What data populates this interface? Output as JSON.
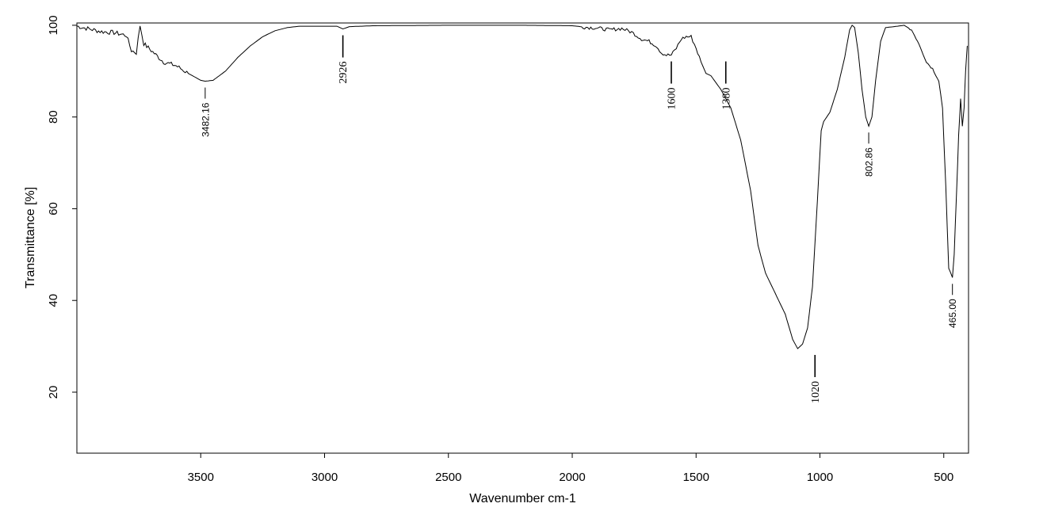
{
  "chart_data": {
    "type": "line",
    "title": "",
    "xlabel": "Wavenumber cm-1",
    "ylabel": "Transmittance [%]",
    "xlim": [
      4000,
      400
    ],
    "ylim": [
      6.7,
      100.5
    ],
    "x_ticks": [
      3500,
      3000,
      2500,
      2000,
      1500,
      1000,
      500
    ],
    "y_ticks": [
      20,
      40,
      60,
      80,
      100
    ],
    "x_tick_labels": [
      "3500",
      "3000",
      "2500",
      "2000",
      "1500",
      "1000",
      "500"
    ],
    "y_tick_labels": [
      "20",
      "40",
      "60",
      "80",
      "100"
    ],
    "grid": false,
    "legend": "none",
    "line_color": "#000000",
    "series": [
      {
        "values": [
          [
            4000,
            99.8
          ],
          [
            3950,
            99.2
          ],
          [
            3900,
            98.6
          ],
          [
            3850,
            98.4
          ],
          [
            3800,
            97.8
          ],
          [
            3780,
            94.5
          ],
          [
            3760,
            94.0
          ],
          [
            3745,
            100.0
          ],
          [
            3730,
            96.0
          ],
          [
            3700,
            94.5
          ],
          [
            3650,
            92.0
          ],
          [
            3600,
            91.2
          ],
          [
            3550,
            89.5
          ],
          [
            3500,
            88.0
          ],
          [
            3482,
            87.8
          ],
          [
            3450,
            88.0
          ],
          [
            3400,
            90.0
          ],
          [
            3350,
            93.0
          ],
          [
            3300,
            95.5
          ],
          [
            3250,
            97.5
          ],
          [
            3200,
            98.8
          ],
          [
            3150,
            99.5
          ],
          [
            3100,
            99.8
          ],
          [
            3000,
            99.8
          ],
          [
            2950,
            99.8
          ],
          [
            2926,
            99.2
          ],
          [
            2900,
            99.7
          ],
          [
            2800,
            99.9
          ],
          [
            2500,
            100.0
          ],
          [
            2200,
            100.0
          ],
          [
            2000,
            99.9
          ],
          [
            1950,
            99.6
          ],
          [
            1900,
            99.4
          ],
          [
            1850,
            99.0
          ],
          [
            1800,
            99.3
          ],
          [
            1760,
            98.5
          ],
          [
            1720,
            97.0
          ],
          [
            1690,
            96.5
          ],
          [
            1660,
            95.5
          ],
          [
            1640,
            94.0
          ],
          [
            1620,
            93.5
          ],
          [
            1600,
            93.5
          ],
          [
            1580,
            95.0
          ],
          [
            1560,
            97.0
          ],
          [
            1540,
            97.5
          ],
          [
            1520,
            97.5
          ],
          [
            1500,
            95.0
          ],
          [
            1480,
            92.0
          ],
          [
            1460,
            89.5
          ],
          [
            1440,
            89.0
          ],
          [
            1400,
            86.0
          ],
          [
            1360,
            82.0
          ],
          [
            1320,
            75.0
          ],
          [
            1280,
            64.0
          ],
          [
            1250,
            52.0
          ],
          [
            1220,
            46.0
          ],
          [
            1180,
            41.5
          ],
          [
            1140,
            37.0
          ],
          [
            1110,
            31.5
          ],
          [
            1090,
            29.5
          ],
          [
            1070,
            30.5
          ],
          [
            1050,
            34.0
          ],
          [
            1030,
            43.0
          ],
          [
            1010,
            62.0
          ],
          [
            995,
            77.0
          ],
          [
            985,
            79.0
          ],
          [
            960,
            81.0
          ],
          [
            930,
            86.0
          ],
          [
            900,
            93.0
          ],
          [
            880,
            99.0
          ],
          [
            870,
            100.0
          ],
          [
            860,
            99.5
          ],
          [
            845,
            94.0
          ],
          [
            830,
            86.0
          ],
          [
            815,
            80.0
          ],
          [
            803,
            78.0
          ],
          [
            790,
            80.0
          ],
          [
            775,
            88.0
          ],
          [
            755,
            96.5
          ],
          [
            735,
            99.5
          ],
          [
            700,
            99.7
          ],
          [
            660,
            100.0
          ],
          [
            630,
            99.0
          ],
          [
            600,
            96.0
          ],
          [
            570,
            92.0
          ],
          [
            545,
            90.5
          ],
          [
            520,
            88.0
          ],
          [
            505,
            82.0
          ],
          [
            492,
            65.0
          ],
          [
            480,
            47.0
          ],
          [
            472,
            46.0
          ],
          [
            465,
            45.0
          ],
          [
            458,
            50.0
          ],
          [
            448,
            64.0
          ],
          [
            440,
            76.0
          ],
          [
            432,
            84.0
          ],
          [
            425,
            78.0
          ],
          [
            418,
            82.0
          ],
          [
            412,
            90.0
          ],
          [
            405,
            95.5
          ]
        ]
      }
    ],
    "annotations": [
      {
        "text": "3482.16",
        "x": 3482,
        "y": 87.8,
        "style": "sans"
      },
      {
        "text": "2926",
        "x": 2926,
        "y": 99.2,
        "style": "serif"
      },
      {
        "text": "1600",
        "x": 1600,
        "y": 93.5,
        "style": "serif"
      },
      {
        "text": "1380",
        "x": 1380,
        "y": 93.5,
        "style": "serif"
      },
      {
        "text": "1020",
        "x": 1020,
        "y": 29.5,
        "style": "serif"
      },
      {
        "text": "802.86",
        "x": 803,
        "y": 78.0,
        "style": "sans"
      },
      {
        "text": "465.00",
        "x": 465,
        "y": 45.0,
        "style": "sans"
      }
    ]
  }
}
